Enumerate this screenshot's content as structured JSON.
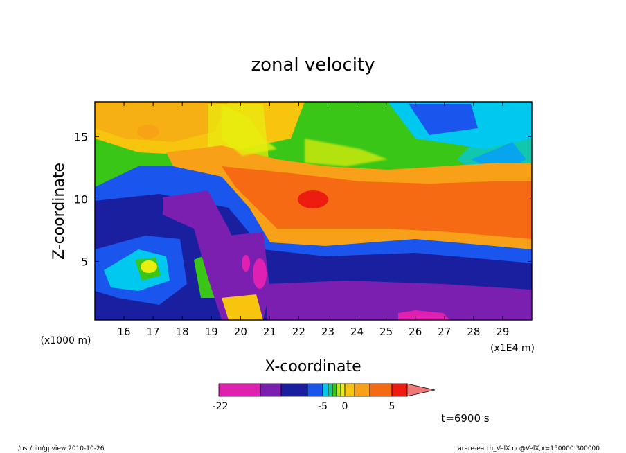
{
  "chart_data": {
    "type": "heatmap",
    "title": "zonal velocity",
    "xlabel": "X-coordinate",
    "ylabel": "Z-coordinate",
    "x_unit_label": "(x1E4 m)",
    "y_unit_label": "(x1000 m)",
    "x_ticks": [
      16,
      17,
      18,
      19,
      20,
      21,
      22,
      23,
      24,
      25,
      26,
      27,
      28,
      29
    ],
    "y_ticks": [
      5,
      10,
      15
    ],
    "xlim": [
      15.0,
      30.0
    ],
    "ylim": [
      0.3,
      17.8
    ],
    "colorbar": {
      "tick_labels": [
        "-22",
        "-5",
        "0",
        "5"
      ],
      "levels": [
        -22,
        -16,
        -12,
        -8,
        -5,
        -4,
        -3,
        -2,
        -1,
        0,
        1,
        3,
        5,
        8,
        12,
        16
      ],
      "colors": [
        "#e020b0",
        "#7a1fb0",
        "#1a1fa0",
        "#1a55ee",
        "#00c8ee",
        "#17c98f",
        "#3ac617",
        "#b8e618",
        "#e8ee10",
        "#f7c40e",
        "#f8a018",
        "#f56a12",
        "#ee1b10",
        "#f07878"
      ]
    },
    "annotation": "t=6900 s"
  },
  "footer": {
    "left": "/usr/bin/gpview   2010-10-26",
    "right": "arare-earth_VelX.nc@VelX,x=150000:300000"
  }
}
